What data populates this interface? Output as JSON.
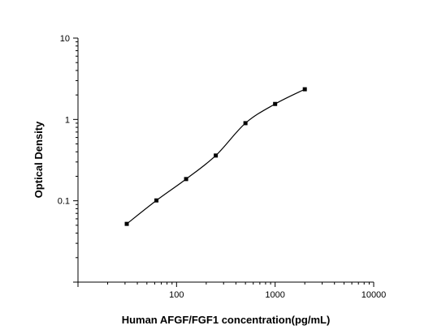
{
  "chart_data": {
    "type": "scatter",
    "title": "",
    "xlabel": "Human AFGF/FGF1 concentration(pg/mL)",
    "ylabel": "Optical Density",
    "x_scale": "log",
    "y_scale": "log",
    "xlim": [
      10,
      10000
    ],
    "ylim": [
      0.01,
      10
    ],
    "x_ticks": [
      100,
      1000,
      10000
    ],
    "x_tick_labels": [
      "100",
      "1000",
      "10000"
    ],
    "y_ticks": [
      0.1,
      1,
      10
    ],
    "y_tick_labels": [
      "0.1",
      "1",
      "10"
    ],
    "grid": false,
    "legend": "none",
    "series": [
      {
        "marker": "square",
        "x": [
          31.25,
          62.5,
          125,
          250,
          500,
          1000,
          2000
        ],
        "y": [
          0.052,
          0.101,
          0.185,
          0.36,
          0.9,
          1.55,
          2.35
        ],
        "fit": "4-parameter logistic curve"
      }
    ],
    "colors": {
      "marker": "#000000",
      "curve": "#000000",
      "axes": "#000000"
    }
  }
}
